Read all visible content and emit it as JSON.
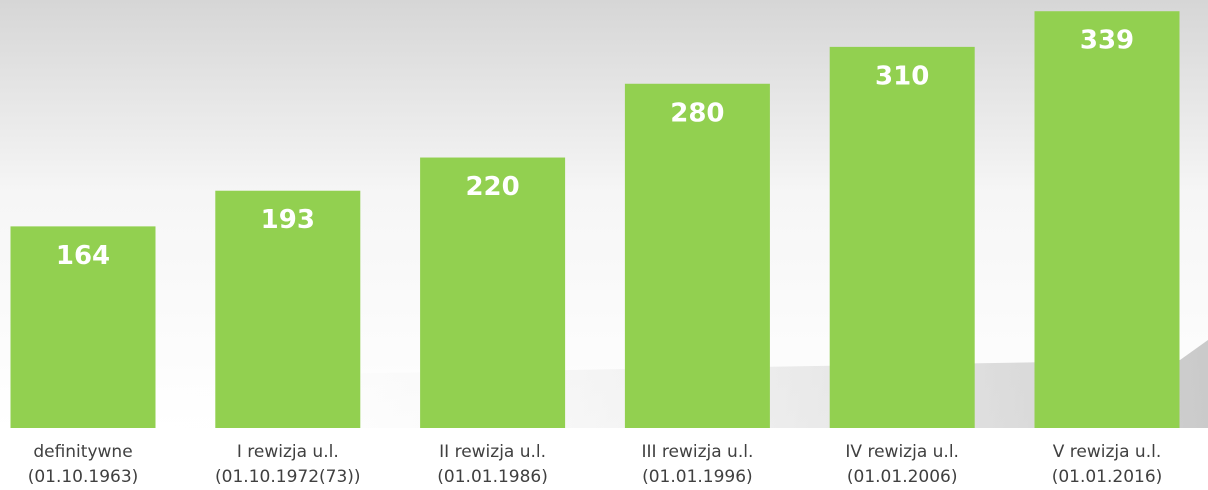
{
  "chart_data": {
    "type": "bar",
    "categories": [
      [
        "definitywne",
        "(01.10.1963)"
      ],
      [
        "I rewizja u.l.",
        "(01.10.1972(73))"
      ],
      [
        "II rewizja u.l.",
        "(01.01.1986)"
      ],
      [
        "III rewizja u.l.",
        "(01.01.1996)"
      ],
      [
        "IV rewizja u.l.",
        "(01.01.2006)"
      ],
      [
        "V rewizja u.l.",
        "(01.01.2016)"
      ]
    ],
    "values": [
      164,
      193,
      220,
      280,
      310,
      339
    ],
    "color": "#92d050",
    "ylim": [
      0,
      340
    ]
  }
}
